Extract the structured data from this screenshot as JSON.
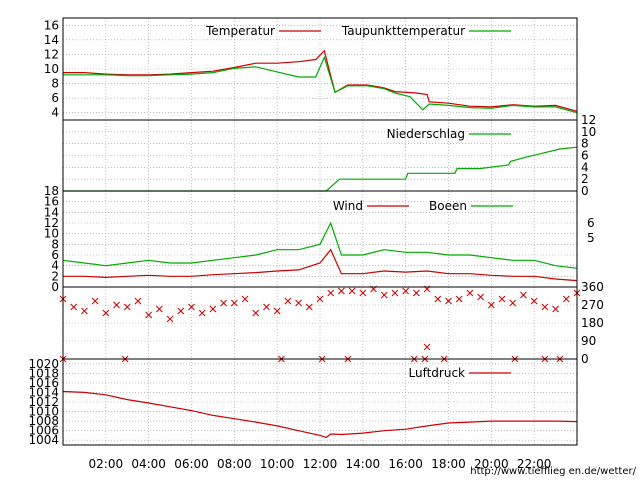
{
  "chart_data": [
    {
      "type": "line",
      "panel": "temperature",
      "x_unit": "hours",
      "xlim": [
        0,
        24
      ],
      "ylim": [
        3,
        17
      ],
      "y_ticks": [
        4,
        6,
        8,
        10,
        12,
        14,
        16
      ],
      "series": [
        {
          "name": "Temperatur",
          "color": "#cc0000",
          "x": [
            0,
            1,
            2,
            3,
            4,
            5,
            6,
            7,
            8,
            9,
            10,
            11,
            11.8,
            12.2,
            12.7,
            13.3,
            14.2,
            15.0,
            15.5,
            16.5,
            17.0,
            17.1,
            18,
            19,
            20,
            21,
            22,
            23,
            24
          ],
          "values": [
            9.5,
            9.5,
            9.3,
            9.2,
            9.2,
            9.3,
            9.5,
            9.7,
            10.2,
            10.8,
            10.8,
            11.0,
            11.3,
            12.5,
            6.8,
            7.8,
            7.8,
            7.4,
            6.9,
            6.7,
            6.5,
            5.5,
            5.3,
            4.9,
            4.8,
            5.1,
            4.9,
            5.0,
            4.2
          ]
        },
        {
          "name": "Taupunkttemperatur",
          "color": "#00aa00",
          "x": [
            0,
            1,
            2,
            3,
            4,
            5,
            6,
            7,
            8,
            9,
            10,
            11,
            11.8,
            12.2,
            12.7,
            13.3,
            14.2,
            15.0,
            15.5,
            16.2,
            16.8,
            17.1,
            18,
            19,
            20,
            21,
            22,
            23,
            24
          ],
          "values": [
            9.2,
            9.2,
            9.2,
            9.1,
            9.1,
            9.2,
            9.3,
            9.5,
            10.1,
            10.3,
            9.6,
            8.9,
            8.9,
            11.6,
            6.8,
            7.7,
            7.7,
            7.3,
            6.7,
            6.2,
            4.4,
            5.2,
            5.0,
            4.7,
            4.6,
            5.0,
            4.8,
            4.8,
            4.0
          ]
        }
      ]
    },
    {
      "type": "line",
      "panel": "precipitation",
      "x_unit": "hours",
      "xlim": [
        0,
        24
      ],
      "ylim": [
        0,
        12
      ],
      "y_ticks": [
        0,
        2,
        4,
        6,
        8,
        10,
        12
      ],
      "series": [
        {
          "name": "Niederschlag",
          "color": "#00aa00",
          "x": [
            0,
            12.3,
            12.9,
            16.0,
            16.1,
            18.3,
            18.4,
            19.5,
            20.8,
            20.9,
            21.7,
            22.3,
            23.2,
            24
          ],
          "values": [
            0,
            0,
            2.0,
            2.0,
            3.0,
            3.0,
            3.8,
            3.8,
            4.4,
            5.0,
            5.8,
            6.3,
            7.1,
            7.4
          ]
        }
      ]
    },
    {
      "type": "line",
      "panel": "wind",
      "x_unit": "hours",
      "xlim": [
        0,
        24
      ],
      "ylim": [
        0,
        18
      ],
      "y_ticks": [
        0,
        2,
        4,
        6,
        8,
        10,
        12,
        14,
        16,
        18
      ],
      "y2_ticks": [
        "5",
        "6"
      ],
      "series": [
        {
          "name": "Wind",
          "color": "#cc0000",
          "x": [
            0,
            1,
            2,
            3,
            4,
            5,
            6,
            7,
            8,
            9,
            10,
            11,
            12,
            12.5,
            13,
            14,
            15,
            16,
            17,
            18,
            19,
            20,
            21,
            22,
            23,
            24
          ],
          "values": [
            2.0,
            2.0,
            1.8,
            2.0,
            2.2,
            2.0,
            2.0,
            2.3,
            2.5,
            2.7,
            3.0,
            3.2,
            4.5,
            7.0,
            2.5,
            2.5,
            3.0,
            2.8,
            3.0,
            2.5,
            2.5,
            2.2,
            2.0,
            2.0,
            1.5,
            1.2
          ]
        },
        {
          "name": "Boeen",
          "color": "#00aa00",
          "x": [
            0,
            1,
            2,
            3,
            4,
            5,
            6,
            7,
            8,
            9,
            10,
            11,
            12,
            12.5,
            13,
            14,
            15,
            16,
            17,
            18,
            19,
            20,
            21,
            22,
            23,
            24
          ],
          "values": [
            5.0,
            4.5,
            4.0,
            4.5,
            5.0,
            4.5,
            4.5,
            5.0,
            5.5,
            6.0,
            7.0,
            7.0,
            8.0,
            12.0,
            6.0,
            6.0,
            7.0,
            6.5,
            6.5,
            6.0,
            6.0,
            5.5,
            5.0,
            5.0,
            4.0,
            3.5
          ]
        }
      ]
    },
    {
      "type": "scatter",
      "panel": "wind-direction",
      "x_unit": "hours",
      "xlim": [
        0,
        24
      ],
      "ylim": [
        0,
        360
      ],
      "y_ticks": [
        0,
        90,
        180,
        270,
        360
      ],
      "series": [
        {
          "name": "",
          "color": "#cc0000",
          "x": [
            0,
            0.5,
            1,
            1.5,
            2,
            2.5,
            3,
            3.5,
            4,
            4.5,
            5,
            5.5,
            6,
            6.5,
            7,
            7.5,
            8,
            8.5,
            9,
            9.5,
            10,
            10.5,
            11,
            11.5,
            12,
            12.5,
            13,
            13.5,
            14,
            14.5,
            15,
            15.5,
            16,
            16.5,
            17,
            17.5,
            18,
            18.5,
            19,
            19.5,
            20,
            20.5,
            21,
            21.5,
            22,
            22.5,
            23,
            23.5,
            24,
            0,
            2.9,
            10.2,
            12.1,
            13.3,
            16.4,
            16.9,
            17.8,
            21.1,
            22.5,
            23.2,
            17.0
          ],
          "values": [
            300,
            260,
            240,
            290,
            230,
            270,
            260,
            290,
            220,
            250,
            200,
            240,
            260,
            230,
            250,
            280,
            280,
            300,
            230,
            260,
            240,
            290,
            280,
            260,
            300,
            330,
            340,
            340,
            330,
            350,
            320,
            330,
            340,
            330,
            350,
            300,
            290,
            300,
            330,
            310,
            270,
            300,
            280,
            320,
            290,
            260,
            250,
            300,
            330,
            0,
            0,
            0,
            0,
            0,
            0,
            0,
            0,
            0,
            0,
            0,
            60
          ]
        }
      ]
    },
    {
      "type": "line",
      "panel": "pressure",
      "x_unit": "hours",
      "xlim": [
        0,
        24
      ],
      "ylim": [
        1003,
        1021
      ],
      "y_ticks": [
        1004,
        1006,
        1008,
        1010,
        1012,
        1014,
        1016,
        1018,
        1020
      ],
      "x_tick_labels": [
        "02:00",
        "04:00",
        "06:00",
        "08:00",
        "10:00",
        "12:00",
        "14:00",
        "16:00",
        "18:00",
        "20:00",
        "22:00"
      ],
      "series": [
        {
          "name": "Luftdruck",
          "color": "#cc0000",
          "x": [
            0,
            1,
            2,
            3,
            4,
            5,
            6,
            7,
            8,
            9,
            10,
            11,
            12,
            12.3,
            12.5,
            13,
            14,
            15,
            16,
            17,
            18,
            19,
            20,
            21,
            22,
            23,
            24
          ],
          "values": [
            1014.2,
            1014.0,
            1013.5,
            1012.5,
            1011.8,
            1011.0,
            1010.2,
            1009.2,
            1008.5,
            1007.8,
            1007.0,
            1006.0,
            1005.0,
            1004.6,
            1005.3,
            1005.2,
            1005.5,
            1006.0,
            1006.3,
            1007.0,
            1007.6,
            1007.8,
            1008.0,
            1008.0,
            1008.0,
            1008.0,
            1007.9
          ]
        }
      ]
    }
  ],
  "footer": {
    "url": "http://www.tiefflieg en.de/wetter/"
  }
}
